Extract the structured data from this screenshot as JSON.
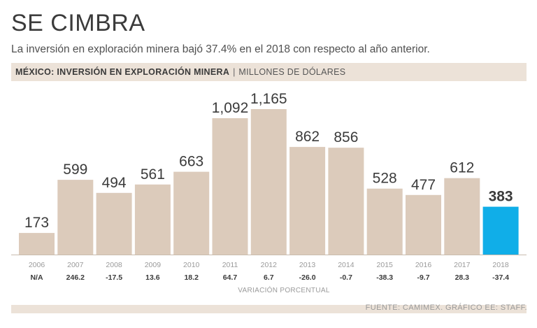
{
  "title": "SE CIMBRA",
  "subtitle": "La inversión en exploración minera bajó 37.4% en el 2018 con respecto al año anterior.",
  "header": {
    "label": "MÉXICO: INVERSIÓN EN EXPLORACIÓN MINERA",
    "separator": "|",
    "unit": "MILLONES DE DÓLARES"
  },
  "source": "FUENTE: CAMIMEX. GRÁFICO EE: STAFF.",
  "colors": {
    "bar": "#dccbbb",
    "highlight": "#10aee8",
    "header_bg": "#ece2d8",
    "label": "#3b3b3b"
  },
  "chart_data": {
    "type": "bar",
    "title": "MÉXICO: INVERSIÓN EN EXPLORACIÓN MINERA",
    "ylabel": "MILLONES DE DÓLARES",
    "xlabel": "",
    "categories": [
      "2006",
      "2007",
      "2008",
      "2009",
      "2010",
      "2011",
      "2012",
      "2013",
      "2014",
      "2015",
      "2016",
      "2017",
      "2018"
    ],
    "values": [
      173,
      599,
      494,
      561,
      663,
      1092,
      1165,
      862,
      856,
      528,
      477,
      612,
      383
    ],
    "value_labels": [
      "173",
      "599",
      "494",
      "561",
      "663",
      "1,092",
      "1,165",
      "862",
      "856",
      "528",
      "477",
      "612",
      "383"
    ],
    "variation": [
      "N/A",
      "246.2",
      "-17.5",
      "13.6",
      "18.2",
      "64.7",
      "6.7",
      "-26.0",
      "-0.7",
      "-38.3",
      "-9.7",
      "28.3",
      "-37.4"
    ],
    "variation_label": "VARIACIÓN PORCENTUAL",
    "highlight_index": 12,
    "ylim": [
      0,
      1165
    ]
  }
}
